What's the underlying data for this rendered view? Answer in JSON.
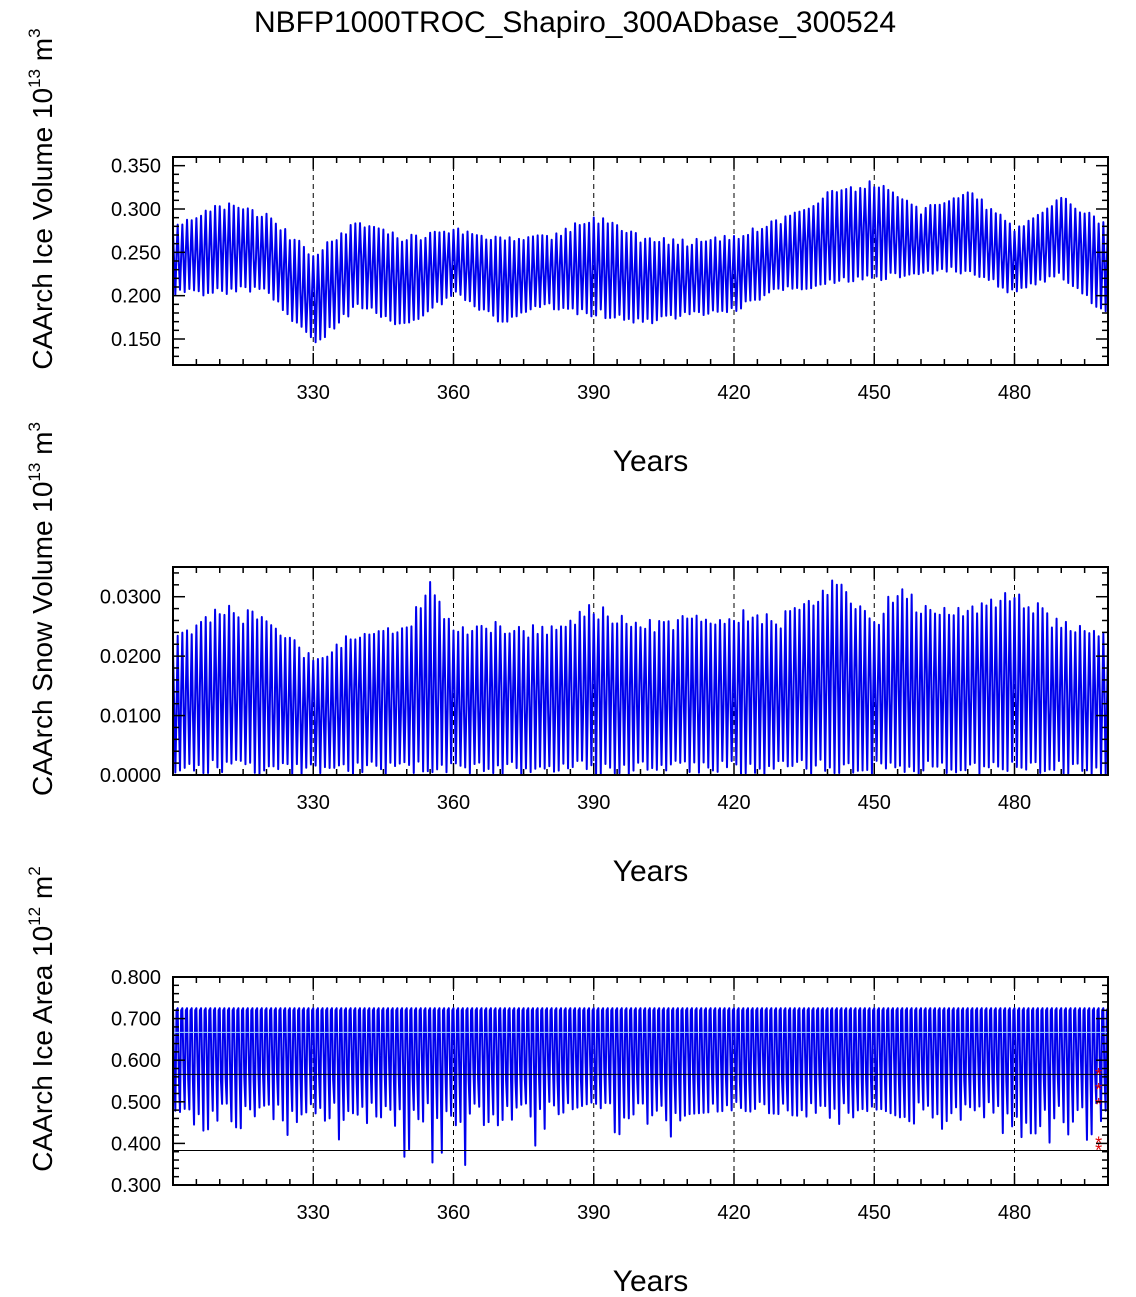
{
  "figure": {
    "title": "NBFP1000TROC_Shapiro_300ADbase_300524"
  },
  "chart_data": [
    {
      "type": "line",
      "ylabel_parts": [
        "CAArch Ice Volume 10",
        "13",
        " m",
        "3"
      ],
      "xlabel": "Years",
      "xlim": [
        300,
        500
      ],
      "ylim": [
        0.12,
        0.36
      ],
      "xticks": [
        330,
        360,
        390,
        420,
        450,
        480
      ],
      "xtick_labels": [
        "330",
        "360",
        "390",
        "420",
        "450",
        "480"
      ],
      "yticks": [
        0.15,
        0.2,
        0.25,
        0.3,
        0.35
      ],
      "ytick_labels": [
        "0.150",
        "0.200",
        "0.250",
        "0.300",
        "0.350"
      ],
      "dashed_vlines": [
        330,
        360,
        390,
        420,
        450,
        480
      ],
      "series": [
        {
          "name": "seasonal ice volume",
          "color": "#0000ee",
          "amplitude_envelope_years": [
            300,
            310,
            320,
            330,
            340,
            350,
            360,
            370,
            380,
            390,
            400,
            410,
            420,
            430,
            440,
            450,
            460,
            470,
            480,
            490,
            499
          ],
          "min": [
            0.2,
            0.2,
            0.205,
            0.14,
            0.185,
            0.16,
            0.2,
            0.165,
            0.185,
            0.175,
            0.165,
            0.175,
            0.18,
            0.205,
            0.21,
            0.215,
            0.225,
            0.225,
            0.2,
            0.22,
            0.18
          ],
          "max": [
            0.28,
            0.31,
            0.295,
            0.25,
            0.29,
            0.27,
            0.28,
            0.27,
            0.27,
            0.295,
            0.27,
            0.265,
            0.27,
            0.29,
            0.32,
            0.335,
            0.3,
            0.325,
            0.28,
            0.315,
            0.29
          ]
        }
      ]
    },
    {
      "type": "line",
      "ylabel_parts": [
        "CAArch Snow Volume 10",
        "13",
        " m",
        "3"
      ],
      "xlabel": "Years",
      "xlim": [
        300,
        500
      ],
      "ylim": [
        0,
        0.035
      ],
      "xticks": [
        330,
        360,
        390,
        420,
        450,
        480
      ],
      "xtick_labels": [
        "330",
        "360",
        "390",
        "420",
        "450",
        "480"
      ],
      "yticks": [
        0,
        0.01,
        0.02,
        0.03
      ],
      "ytick_labels": [
        "0.0000",
        "0.0100",
        "0.0200",
        "0.0300"
      ],
      "dashed_vlines": [
        330,
        360,
        390,
        420,
        450,
        480
      ],
      "series": [
        {
          "name": "seasonal snow volume",
          "color": "#0000ee",
          "amplitude_envelope_years": [
            300,
            310,
            320,
            330,
            340,
            350,
            355,
            360,
            370,
            380,
            390,
            400,
            410,
            420,
            430,
            442,
            450,
            455,
            460,
            470,
            480,
            490,
            499
          ],
          "min": [
            0,
            0,
            0,
            0,
            0,
            0,
            0,
            0,
            0,
            0,
            0,
            0,
            0,
            0,
            0,
            0,
            0,
            0,
            0,
            0,
            0,
            0,
            0
          ],
          "max": [
            0.023,
            0.029,
            0.027,
            0.02,
            0.025,
            0.026,
            0.033,
            0.025,
            0.026,
            0.025,
            0.029,
            0.026,
            0.027,
            0.028,
            0.027,
            0.034,
            0.026,
            0.033,
            0.029,
            0.029,
            0.032,
            0.026,
            0.024
          ]
        }
      ]
    },
    {
      "type": "line",
      "ylabel_parts": [
        "CAArch Ice Area 10",
        "12",
        " m",
        "2"
      ],
      "xlabel": "Years",
      "xlim": [
        300,
        500
      ],
      "ylim": [
        0.3,
        0.8
      ],
      "xticks": [
        330,
        360,
        390,
        420,
        450,
        480
      ],
      "xtick_labels": [
        "330",
        "360",
        "390",
        "420",
        "450",
        "480"
      ],
      "yticks": [
        0.3,
        0.4,
        0.5,
        0.6,
        0.7,
        0.8
      ],
      "ytick_labels": [
        "0.300",
        "0.400",
        "0.500",
        "0.600",
        "0.700",
        "0.800"
      ],
      "dashed_vlines": [
        330,
        360,
        390,
        420,
        450,
        480
      ],
      "hlines": [
        {
          "value": 0.667,
          "color": "#9ad8ff"
        },
        {
          "value": 0.566,
          "color": "#000000"
        },
        {
          "value": 0.383,
          "color": "#000000"
        }
      ],
      "series": [
        {
          "name": "seasonal ice area",
          "color": "#0000ee",
          "max_value": 0.725,
          "amplitude_envelope_years": [
            300,
            310,
            320,
            330,
            340,
            348,
            360,
            373,
            380,
            390,
            400,
            410,
            420,
            430,
            440,
            450,
            460,
            470,
            480,
            490,
            499
          ],
          "min": [
            0.45,
            0.42,
            0.44,
            0.36,
            0.42,
            0.36,
            0.35,
            0.31,
            0.43,
            0.47,
            0.37,
            0.44,
            0.45,
            0.44,
            0.43,
            0.46,
            0.41,
            0.46,
            0.4,
            0.4,
            0.39
          ]
        }
      ],
      "markers": [
        {
          "x": 498,
          "y": 0.565,
          "symbol": "*",
          "color": "#dd0000"
        },
        {
          "x": 498,
          "y": 0.528,
          "symbol": "*",
          "color": "#dd0000"
        },
        {
          "x": 498,
          "y": 0.492,
          "symbol": "*",
          "color": "#dd0000"
        },
        {
          "x": 498,
          "y": 0.4,
          "symbol": "*",
          "color": "#dd0000"
        },
        {
          "x": 498,
          "y": 0.383,
          "symbol": "*",
          "color": "#dd0000"
        }
      ]
    }
  ]
}
